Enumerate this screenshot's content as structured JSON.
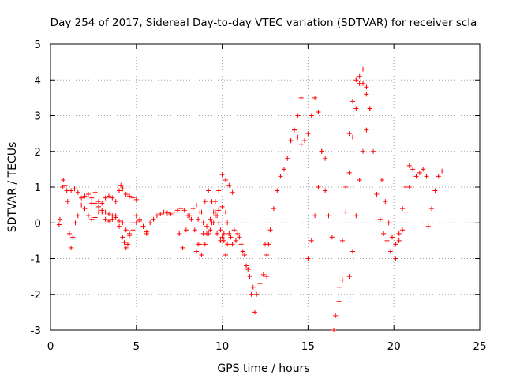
{
  "chart_data": {
    "type": "scatter",
    "title": "Day 254 of 2017, Sidereal Day-to-day VTEC variation (SDTVAR) for receiver scla",
    "xlabel": "GPS time / hours",
    "ylabel": "SDTVAR / TECUs",
    "xlim": [
      0,
      25
    ],
    "ylim": [
      -3,
      5
    ],
    "xticks": [
      0,
      5,
      10,
      15,
      20,
      25
    ],
    "yticks": [
      -3,
      -2,
      -1,
      0,
      1,
      2,
      3,
      4,
      5
    ],
    "xtick_labels": [
      "0",
      "5",
      "10",
      "15",
      "20",
      "25"
    ],
    "ytick_labels": [
      "-3",
      "-2",
      "-1",
      "0",
      "1",
      "2",
      "3",
      "4",
      "5"
    ],
    "grid": true,
    "marker": "+",
    "color": "#ff0000",
    "series": [
      {
        "name": "s1",
        "x": [
          0.5,
          0.55,
          0.7,
          0.75,
          0.85,
          0.95,
          1.0,
          1.1,
          1.2,
          1.3,
          1.45,
          1.6,
          1.8,
          2.0,
          2.2,
          2.4,
          2.6,
          2.8,
          3.0,
          3.2,
          3.4,
          3.6,
          3.8,
          4.0,
          4.2,
          4.4,
          4.6,
          4.8,
          5.0,
          5.2,
          5.4,
          5.6,
          5.8,
          6.0,
          6.2,
          6.4,
          6.6,
          6.8,
          7.0,
          7.2,
          7.4,
          7.6,
          7.8,
          8.0,
          8.2,
          8.4,
          8.6,
          8.8,
          9.0,
          9.2,
          9.4,
          9.6,
          9.8,
          10.0,
          10.2,
          10.4,
          10.6,
          10.8,
          11.0,
          11.2,
          11.4,
          11.6,
          11.8,
          12.0,
          12.2,
          12.4,
          12.6
        ],
        "y": [
          -0.05,
          0.1,
          1.0,
          1.2,
          1.05,
          0.9,
          0.6,
          -0.3,
          -0.7,
          -0.4,
          0.0,
          0.2,
          0.5,
          0.75,
          0.8,
          0.7,
          0.55,
          0.45,
          0.35,
          0.3,
          0.25,
          0.2,
          0.15,
          0.05,
          0.0,
          -0.2,
          -0.35,
          -0.2,
          0.0,
          0.05,
          -0.1,
          -0.25,
          0.0,
          0.1,
          0.2,
          0.25,
          0.3,
          0.28,
          0.25,
          0.3,
          0.35,
          0.4,
          0.35,
          0.2,
          0.1,
          -0.2,
          -0.6,
          -0.9,
          -0.6,
          -0.3,
          0.0,
          0.2,
          0.35,
          0.45,
          0.3,
          -0.3,
          -0.6,
          -0.5,
          -0.4,
          -0.8,
          -1.2,
          -1.5,
          -1.8,
          -2.0,
          -1.7,
          -1.45,
          -1.5
        ]
      },
      {
        "name": "s2",
        "x": [
          1.2,
          1.4,
          1.6,
          1.8,
          2.0,
          2.2,
          2.4,
          2.6,
          2.8,
          3.0,
          3.2,
          3.4,
          3.6,
          3.8,
          4.0,
          4.1,
          4.2,
          4.4,
          4.6,
          4.8,
          5.0
        ],
        "y": [
          0.9,
          0.95,
          0.85,
          0.7,
          0.4,
          0.2,
          0.1,
          0.15,
          0.3,
          0.55,
          0.7,
          0.75,
          0.7,
          0.6,
          0.9,
          1.05,
          0.95,
          0.8,
          0.75,
          0.7,
          0.65
        ]
      },
      {
        "name": "s3",
        "x": [
          2.2,
          2.4,
          2.6,
          2.8,
          3.0,
          3.2,
          3.4,
          3.6,
          3.8,
          4.0,
          4.2,
          4.3,
          4.4,
          4.5,
          4.6,
          4.8,
          5.0,
          5.2,
          5.4,
          5.6
        ],
        "y": [
          0.2,
          0.55,
          0.85,
          0.6,
          0.3,
          0.1,
          0.05,
          0.1,
          0.2,
          -0.1,
          -0.4,
          -0.55,
          -0.7,
          -0.6,
          -0.3,
          0.0,
          0.2,
          0.1,
          -0.1,
          -0.3
        ]
      },
      {
        "name": "s4",
        "x": [
          7.5,
          7.7,
          7.9,
          8.1,
          8.3,
          8.5,
          8.7,
          8.9,
          9.1,
          9.3,
          9.5,
          9.7,
          9.9,
          10.1,
          10.3
        ],
        "y": [
          -0.3,
          -0.7,
          -0.2,
          0.2,
          0.4,
          0.5,
          0.3,
          0.0,
          -0.3,
          -0.2,
          0.0,
          -0.3,
          -0.5,
          -0.3,
          0.0
        ]
      },
      {
        "name": "s5",
        "x": [
          8.5,
          8.7,
          8.9,
          9.1,
          9.3,
          9.5,
          9.7,
          9.9,
          10.1
        ],
        "y": [
          -0.8,
          -0.6,
          -0.3,
          -0.1,
          0.1,
          0.3,
          0.2,
          -0.2,
          -0.5
        ]
      },
      {
        "name": "s6",
        "x": [
          8.6,
          8.8,
          9.0,
          9.2,
          9.4,
          9.6,
          9.8,
          10.0,
          10.2
        ],
        "y": [
          0.1,
          0.3,
          0.6,
          0.9,
          0.6,
          0.3,
          0.0,
          -0.4,
          -0.9
        ]
      },
      {
        "name": "s7",
        "x": [
          9.6,
          9.8,
          10.0,
          10.2,
          10.4,
          10.6
        ],
        "y": [
          0.6,
          0.9,
          1.35,
          1.2,
          1.05,
          0.85
        ]
      },
      {
        "name": "s8",
        "x": [
          10.3,
          10.5,
          10.7,
          10.9,
          11.1,
          11.3,
          11.5,
          11.7,
          11.9
        ],
        "y": [
          -0.6,
          -0.4,
          -0.2,
          -0.3,
          -0.6,
          -0.9,
          -1.3,
          -2.0,
          -2.5
        ]
      },
      {
        "name": "s9",
        "x": [
          12.5,
          12.6,
          12.7,
          12.8,
          13.0,
          13.2,
          13.4,
          13.6,
          13.8,
          14.0,
          14.2,
          14.4,
          14.6
        ],
        "y": [
          -0.6,
          -0.9,
          -0.6,
          -0.2,
          0.4,
          0.9,
          1.3,
          1.5,
          1.8,
          2.3,
          2.6,
          3.0,
          3.5
        ]
      },
      {
        "name": "s10",
        "x": [
          14.0,
          14.2,
          14.4,
          14.6,
          14.8,
          15.0,
          15.2,
          15.4,
          15.6,
          15.8,
          16.0,
          16.2,
          16.4
        ],
        "y": [
          2.3,
          2.6,
          2.4,
          2.2,
          2.3,
          2.5,
          3.0,
          3.5,
          3.1,
          2.0,
          0.9,
          0.2,
          -0.4
        ]
      },
      {
        "name": "s11",
        "x": [
          15.0,
          15.2,
          15.4,
          15.6,
          15.8,
          16.0
        ],
        "y": [
          -1.0,
          -0.5,
          0.2,
          1.0,
          2.0,
          1.8
        ]
      },
      {
        "name": "s12",
        "x": [
          16.5,
          16.6,
          16.8,
          17.0,
          17.2,
          17.4,
          17.6,
          17.8,
          18.0,
          18.2,
          18.4,
          18.6
        ],
        "y": [
          -3.0,
          -2.6,
          -1.8,
          -0.5,
          1.0,
          2.5,
          3.4,
          4.0,
          4.1,
          3.9,
          3.6,
          3.2
        ]
      },
      {
        "name": "s13",
        "x": [
          16.8,
          17.0,
          17.2,
          17.4,
          17.6,
          17.8,
          18.0,
          18.2,
          18.4,
          18.6,
          18.8,
          19.0,
          19.2,
          19.4,
          19.6,
          19.8
        ],
        "y": [
          -2.2,
          -1.6,
          0.3,
          1.4,
          2.4,
          3.2,
          3.9,
          4.3,
          3.8,
          3.2,
          2.0,
          0.8,
          0.1,
          -0.3,
          -0.5,
          -0.8
        ]
      },
      {
        "name": "s14",
        "x": [
          17.4,
          17.6,
          17.8,
          18.0,
          18.2,
          18.4
        ],
        "y": [
          -1.5,
          -0.8,
          0.2,
          1.2,
          2.0,
          2.6
        ]
      },
      {
        "name": "s15",
        "x": [
          19.3,
          19.5,
          19.7,
          19.9,
          20.1,
          20.3,
          20.5,
          20.7,
          20.9
        ],
        "y": [
          1.2,
          0.6,
          0.0,
          -0.4,
          -0.6,
          -0.5,
          -0.2,
          0.3,
          1.0
        ]
      },
      {
        "name": "s16",
        "x": [
          20.1,
          20.3,
          20.5,
          20.7,
          20.9,
          21.1,
          21.3,
          21.5,
          21.7,
          21.9
        ],
        "y": [
          -1.0,
          -0.3,
          0.4,
          1.0,
          1.6,
          1.5,
          1.3,
          1.4,
          1.5,
          1.3
        ]
      },
      {
        "name": "s17",
        "x": [
          22.0,
          22.2,
          22.4,
          22.6,
          22.8
        ],
        "y": [
          -0.1,
          0.4,
          0.9,
          1.3,
          1.45
        ]
      }
    ]
  }
}
